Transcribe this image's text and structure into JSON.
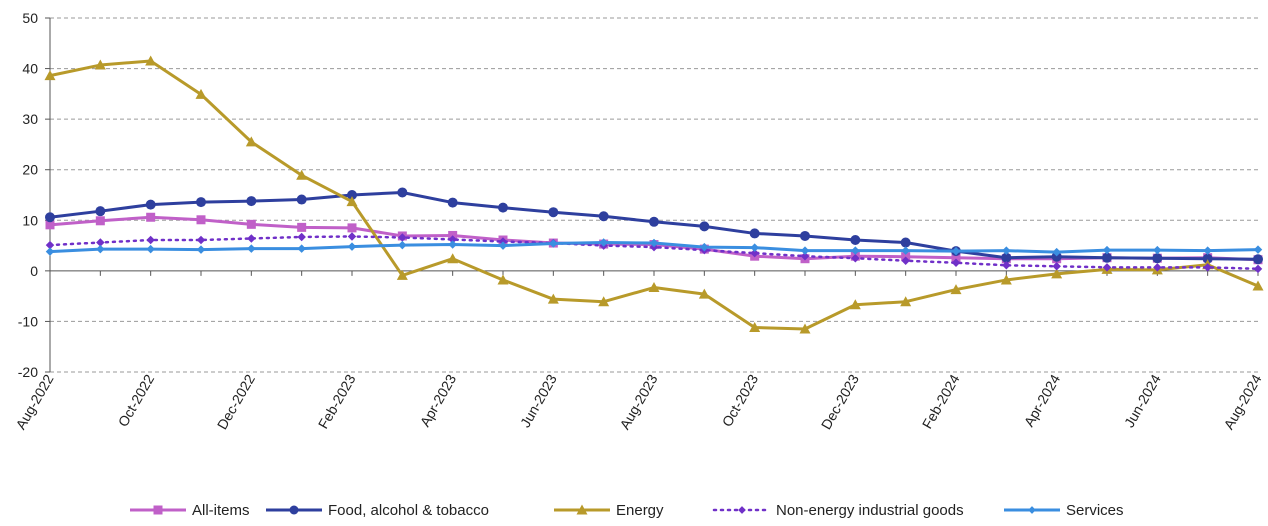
{
  "chart_data": {
    "type": "line",
    "title": "",
    "xlabel": "",
    "ylabel": "",
    "ylim": [
      -20,
      50
    ],
    "yticks": [
      -20,
      -10,
      0,
      10,
      20,
      30,
      40,
      50
    ],
    "grid": true,
    "legend_position": "bottom",
    "x": [
      "Aug-2022",
      "Sep-2022",
      "Oct-2022",
      "Nov-2022",
      "Dec-2022",
      "Jan-2023",
      "Feb-2023",
      "Mar-2023",
      "Apr-2023",
      "May-2023",
      "Jun-2023",
      "Jul-2023",
      "Aug-2023",
      "Sep-2023",
      "Oct-2023",
      "Nov-2023",
      "Dec-2023",
      "Jan-2024",
      "Feb-2024",
      "Mar-2024",
      "Apr-2024",
      "May-2024",
      "Jun-2024",
      "Jul-2024",
      "Aug-2024"
    ],
    "xtick_labels": [
      "Aug-2022",
      "Oct-2022",
      "Dec-2022",
      "Feb-2023",
      "Apr-2023",
      "Jun-2023",
      "Aug-2023",
      "Oct-2023",
      "Dec-2023",
      "Feb-2024",
      "Apr-2024",
      "Jun-2024",
      "Aug-2024"
    ],
    "series": [
      {
        "name": "All-items",
        "color": "#c060c8",
        "marker": "square",
        "dash": "solid",
        "values": [
          9.1,
          9.9,
          10.6,
          10.1,
          9.2,
          8.6,
          8.5,
          6.9,
          7.0,
          6.1,
          5.5,
          5.3,
          5.2,
          4.3,
          2.9,
          2.4,
          2.9,
          2.8,
          2.6,
          2.4,
          2.4,
          2.6,
          2.5,
          2.6,
          2.2
        ]
      },
      {
        "name": "Food, alcohol & tobacco",
        "color": "#2e3f9e",
        "marker": "circle",
        "dash": "solid",
        "values": [
          10.6,
          11.8,
          13.1,
          13.6,
          13.8,
          14.1,
          15.0,
          15.5,
          13.5,
          12.5,
          11.6,
          10.8,
          9.7,
          8.8,
          7.4,
          6.9,
          6.1,
          5.6,
          3.9,
          2.6,
          2.8,
          2.6,
          2.5,
          2.4,
          2.3
        ]
      },
      {
        "name": "Energy",
        "color": "#b89a2a",
        "marker": "triangle",
        "dash": "solid",
        "values": [
          38.6,
          40.7,
          41.5,
          34.9,
          25.5,
          18.9,
          13.7,
          -0.9,
          2.4,
          -1.8,
          -5.6,
          -6.1,
          -3.3,
          -4.6,
          -11.2,
          -11.5,
          -6.7,
          -6.1,
          -3.7,
          -1.8,
          -0.6,
          0.3,
          0.2,
          1.2,
          -3.0
        ]
      },
      {
        "name": "Non-energy industrial goods",
        "color": "#7030c8",
        "marker": "diamond",
        "dash": "dotted",
        "values": [
          5.1,
          5.6,
          6.1,
          6.1,
          6.4,
          6.7,
          6.8,
          6.6,
          6.2,
          5.8,
          5.5,
          5.0,
          4.7,
          4.1,
          3.5,
          2.9,
          2.5,
          2.0,
          1.6,
          1.1,
          0.9,
          0.7,
          0.7,
          0.7,
          0.4
        ]
      },
      {
        "name": "Services",
        "color": "#3a8ee0",
        "marker": "diamond",
        "dash": "solid",
        "values": [
          3.8,
          4.3,
          4.3,
          4.2,
          4.4,
          4.4,
          4.8,
          5.1,
          5.2,
          5.0,
          5.4,
          5.6,
          5.5,
          4.7,
          4.6,
          4.0,
          4.0,
          4.0,
          3.9,
          4.0,
          3.7,
          4.1,
          4.1,
          4.0,
          4.2
        ]
      }
    ]
  }
}
